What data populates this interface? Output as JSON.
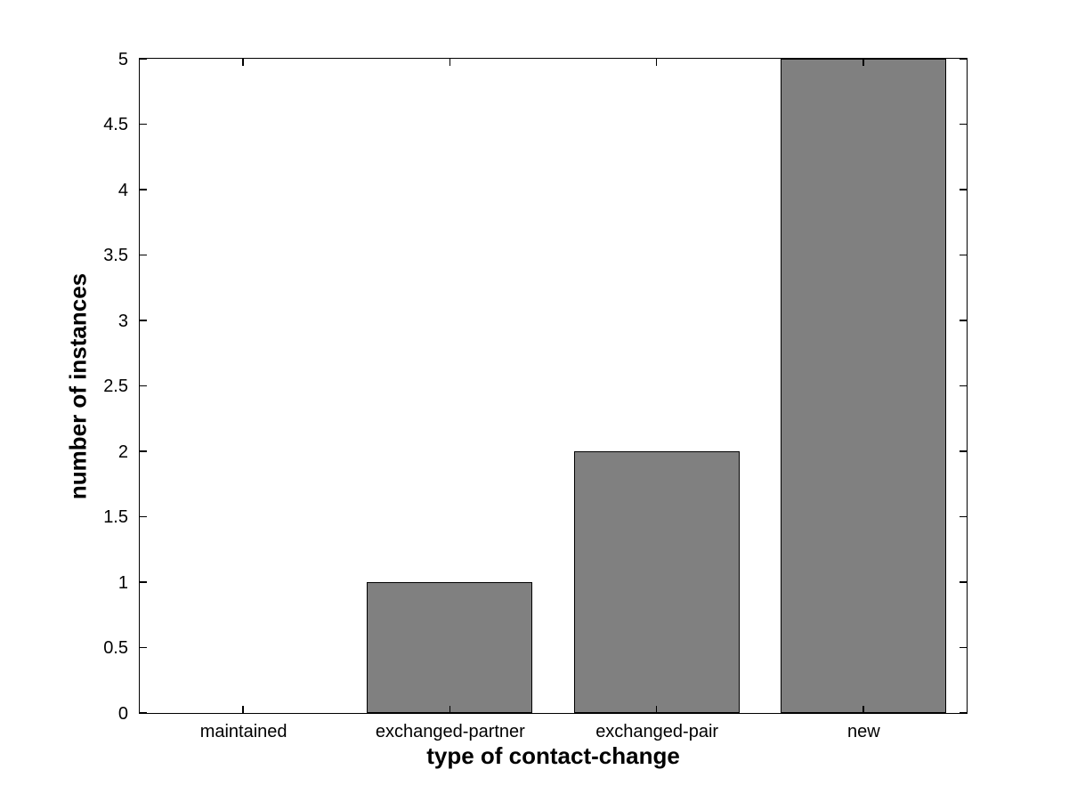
{
  "chart_data": {
    "type": "bar",
    "categories": [
      "maintained",
      "exchanged-partner",
      "exchanged-pair",
      "new"
    ],
    "values": [
      0,
      1,
      2,
      5
    ],
    "title": "",
    "xlabel": "type of contact-change",
    "ylabel": "number of instances",
    "ylim": [
      0,
      5
    ],
    "yticks": [
      0,
      0.5,
      1,
      1.5,
      2,
      2.5,
      3,
      3.5,
      4,
      4.5,
      5
    ],
    "ytick_labels": [
      "0",
      "0.5",
      "1",
      "1.5",
      "2",
      "2.5",
      "3",
      "3.5",
      "4",
      "4.5",
      "5"
    ],
    "bar_width_fraction": 0.8,
    "bar_color": "#808080",
    "bar_edge_color": "#000000",
    "axis_color": "#000000",
    "background_color": "#ffffff",
    "grid": false,
    "box": true,
    "tick_direction": "in",
    "legend": "none"
  }
}
